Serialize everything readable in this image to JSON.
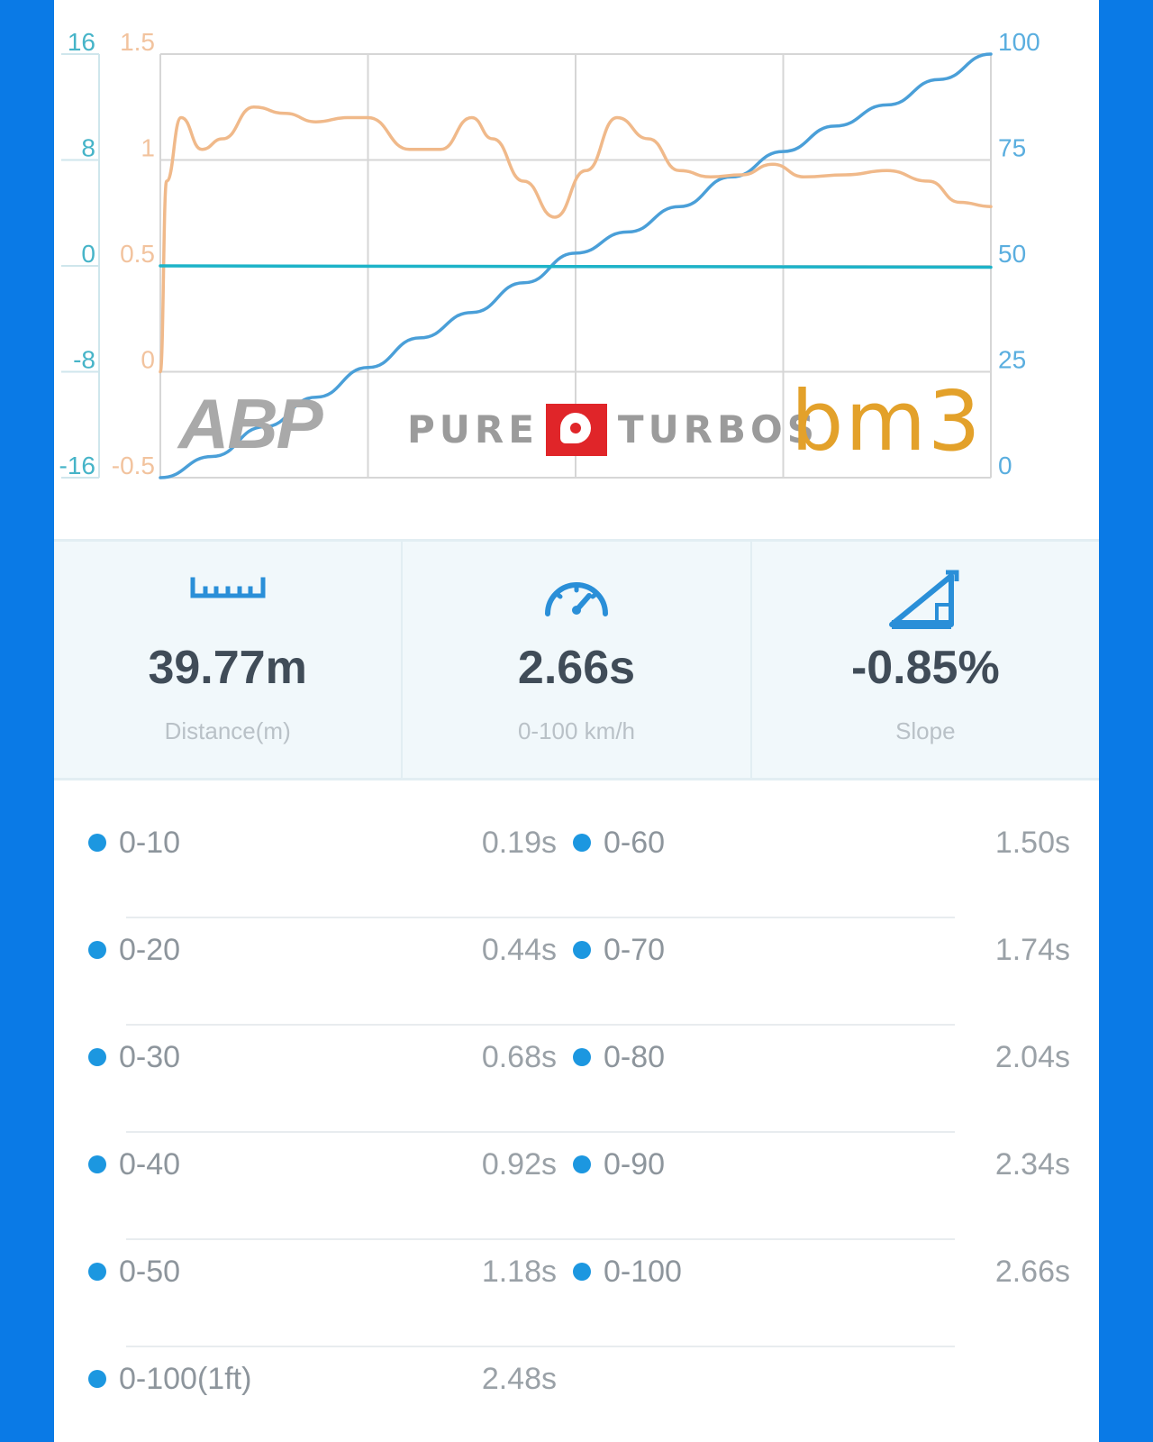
{
  "chart": {
    "left_axis_outer_ticks": [
      "16",
      "8",
      "0",
      "-8",
      "-16"
    ],
    "left_axis_inner_ticks": [
      "1.5",
      "1",
      "0.5",
      "0",
      "-0.5"
    ],
    "right_axis_ticks": [
      "100",
      "75",
      "50",
      "25",
      "0"
    ],
    "colors": {
      "speed": "#4a9fd8",
      "accel": "#f0b98a",
      "slope": "#1db3c8",
      "grid": "#d6d6d6",
      "outer_tick": "#46b4c8",
      "inner_tick": "#f2c39e",
      "right_tick": "#5aaedf"
    }
  },
  "chart_data": {
    "type": "line",
    "x_range": [
      0,
      4
    ],
    "y_right_range": [
      0,
      100
    ],
    "y_left_inner_range": [
      -0.5,
      1.5
    ],
    "y_left_outer_range": [
      -16,
      16
    ],
    "grid": true,
    "series": [
      {
        "axis": "right",
        "x": [
          0,
          0.25,
          0.5,
          0.75,
          1.0,
          1.25,
          1.5,
          1.75,
          2.0,
          2.25,
          2.5,
          2.75,
          3.0,
          3.25,
          3.5,
          3.75,
          4.0
        ],
        "values": [
          0,
          5,
          12,
          19,
          26,
          33,
          39,
          46,
          53,
          58,
          64,
          71,
          77,
          83,
          88,
          94,
          100
        ]
      },
      {
        "axis": "left_inner",
        "x": [
          0,
          0.03,
          0.1,
          0.2,
          0.3,
          0.45,
          0.6,
          0.75,
          0.9,
          1.0,
          1.2,
          1.35,
          1.5,
          1.6,
          1.75,
          1.9,
          2.05,
          2.2,
          2.35,
          2.5,
          2.65,
          2.8,
          2.95,
          3.1,
          3.3,
          3.5,
          3.7,
          3.85,
          4.0
        ],
        "values": [
          0,
          0.9,
          1.2,
          1.05,
          1.1,
          1.25,
          1.22,
          1.18,
          1.2,
          1.2,
          1.05,
          1.05,
          1.2,
          1.1,
          0.9,
          0.73,
          0.95,
          1.2,
          1.1,
          0.95,
          0.92,
          0.93,
          0.98,
          0.92,
          0.93,
          0.95,
          0.9,
          0.8,
          0.78
        ]
      },
      {
        "axis": "left_outer",
        "x": [
          0,
          4.0
        ],
        "values": [
          0,
          -0.1
        ]
      }
    ]
  },
  "logos": {
    "abp": "ABP",
    "pure": "PURE",
    "turbos": "TURBOS",
    "bm3": "bm3"
  },
  "stats": [
    {
      "value": "39.77m",
      "label": "Distance(m)",
      "icon": "ruler-icon"
    },
    {
      "value": "2.66s",
      "label": "0-100 km/h",
      "icon": "speedometer-icon"
    },
    {
      "value": "-0.85%",
      "label": "Slope",
      "icon": "slope-icon"
    }
  ],
  "splits": [
    {
      "left_label": "0-10",
      "left_value": "0.19s",
      "right_label": "0-60",
      "right_value": "1.50s"
    },
    {
      "left_label": "0-20",
      "left_value": "0.44s",
      "right_label": "0-70",
      "right_value": "1.74s"
    },
    {
      "left_label": "0-30",
      "left_value": "0.68s",
      "right_label": "0-80",
      "right_value": "2.04s"
    },
    {
      "left_label": "0-40",
      "left_value": "0.92s",
      "right_label": "0-90",
      "right_value": "2.34s"
    },
    {
      "left_label": "0-50",
      "left_value": "1.18s",
      "right_label": "0-100",
      "right_value": "2.66s"
    },
    {
      "left_label": "0-100(1ft)",
      "left_value": "2.48s",
      "right_label": "",
      "right_value": ""
    }
  ],
  "colors": {
    "frame_blue": "#0a7ae6",
    "dot_blue": "#1c97e0",
    "stat_value": "#404c58",
    "stat_label": "#b9c1c7"
  }
}
